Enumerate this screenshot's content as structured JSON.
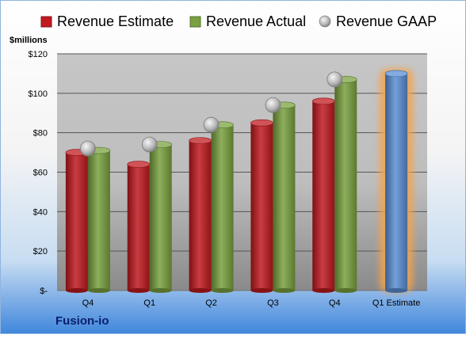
{
  "chart_data": {
    "type": "bar",
    "categories": [
      "Q4",
      "Q1",
      "Q2",
      "Q3",
      "Q4",
      "Q1 Estimate"
    ],
    "series": [
      {
        "name": "Revenue Estimate",
        "type": "bar",
        "color": "#c0191f",
        "values": [
          70,
          64,
          76,
          85,
          96,
          null
        ]
      },
      {
        "name": "Revenue Actual",
        "type": "bar",
        "color": "#79a13f",
        "values": [
          71,
          74,
          84,
          94,
          107,
          null
        ]
      },
      {
        "name": "Revenue GAAP",
        "type": "marker",
        "color": "#b0b0b0",
        "values": [
          72,
          74,
          84,
          94,
          107,
          null
        ]
      },
      {
        "name": "",
        "type": "bar",
        "color": "#5b8fd4",
        "values": [
          null,
          null,
          null,
          null,
          null,
          110
        ],
        "highlight": "#f5a34b"
      }
    ],
    "ylabel": "$millions",
    "yticks": [
      "$-",
      "$20",
      "$40",
      "$60",
      "$80",
      "$100",
      "$120"
    ],
    "ylim": [
      0,
      120
    ],
    "grid": true,
    "legend": "top",
    "company": "Fusion-io"
  }
}
